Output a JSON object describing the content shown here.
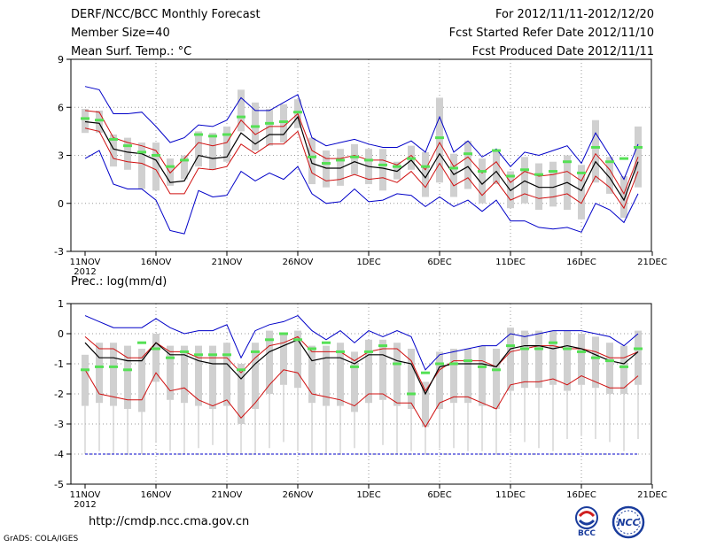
{
  "header": {
    "title": "DERF/NCC/BCC Monthly Forecast",
    "member_size": "Member Size=40",
    "variable": "Mean Surf. Temp.: °C",
    "period": "For 2012/11/11-2012/12/20",
    "started": "Fcst Started Refer Date 2012/11/10",
    "produced": "Fcst Produced Date 2012/11/11"
  },
  "footer": {
    "url": "http://cmdp.ncc.cma.gov.cn",
    "credit": "GrADS: COLA/IGES",
    "logo_bcc": "BCC",
    "logo_ncc": "NCC"
  },
  "colors": {
    "ensemble_mean": "#000000",
    "spread": "#d01010",
    "envelope": "#0000c8",
    "climatology": "#55e055",
    "members_box": "#d0d0d0",
    "members_whisker": "#c0c0c0"
  },
  "chart_data": [
    {
      "type": "line",
      "title": "Mean Surf. Temp.: °C",
      "ylim": [
        -3,
        9
      ],
      "yticks": [
        -3,
        0,
        3,
        6,
        9
      ],
      "x_tick_labels": [
        "11NOV",
        "16NOV",
        "21NOV",
        "26NOV",
        "1DEC",
        "6DEC",
        "11DEC",
        "16DEC",
        "21DEC"
      ],
      "x_tick_sublabel": "2012",
      "days": 40,
      "series": [
        {
          "name": "max",
          "values": [
            7.3,
            7.1,
            5.6,
            5.6,
            5.7,
            4.8,
            3.8,
            4.1,
            4.9,
            4.8,
            5.2,
            6.6,
            5.8,
            5.8,
            6.3,
            6.8,
            4.1,
            3.6,
            3.8,
            4.0,
            3.7,
            3.5,
            3.5,
            3.9,
            3.2,
            5.4,
            3.2,
            3.9,
            2.9,
            3.4,
            2.3,
            3.2,
            3.0,
            3.3,
            3.6,
            2.5,
            4.4,
            3.0,
            1.5,
            3.7
          ]
        },
        {
          "name": "upper",
          "values": [
            5.8,
            5.7,
            4.1,
            3.8,
            3.6,
            3.3,
            1.9,
            2.8,
            3.8,
            3.6,
            3.8,
            5.2,
            4.3,
            4.8,
            4.8,
            5.6,
            3.3,
            2.8,
            2.8,
            3.0,
            2.7,
            2.7,
            2.4,
            3.0,
            2.1,
            3.8,
            2.3,
            2.9,
            1.9,
            2.6,
            1.3,
            2.0,
            1.7,
            1.8,
            2.0,
            1.4,
            3.1,
            2.1,
            0.6,
            2.9
          ]
        },
        {
          "name": "mean",
          "values": [
            5.1,
            5.0,
            3.4,
            3.2,
            3.1,
            2.7,
            1.3,
            1.4,
            3.0,
            2.8,
            2.9,
            4.4,
            3.7,
            4.3,
            4.3,
            5.4,
            2.5,
            2.2,
            2.2,
            2.6,
            2.3,
            2.2,
            2.0,
            2.7,
            1.6,
            3.1,
            1.8,
            2.3,
            1.2,
            2.0,
            0.8,
            1.4,
            1.0,
            1.0,
            1.3,
            0.8,
            2.6,
            1.6,
            0.2,
            2.6
          ]
        },
        {
          "name": "lower",
          "values": [
            4.7,
            4.5,
            2.8,
            2.6,
            2.5,
            2.1,
            0.6,
            0.6,
            2.2,
            2.1,
            2.3,
            3.7,
            3.1,
            3.7,
            3.7,
            4.5,
            1.9,
            1.4,
            1.5,
            1.8,
            1.5,
            1.6,
            1.3,
            2.0,
            1.0,
            2.5,
            1.1,
            1.6,
            0.5,
            1.4,
            0.2,
            0.6,
            0.3,
            0.4,
            0.6,
            0.0,
            1.7,
            1.0,
            -0.3,
            2.0
          ]
        },
        {
          "name": "min",
          "values": [
            2.8,
            3.3,
            1.2,
            0.9,
            0.9,
            0.2,
            -1.7,
            -1.9,
            0.8,
            0.4,
            0.5,
            2.0,
            1.4,
            1.9,
            1.5,
            2.3,
            0.6,
            0.0,
            0.1,
            0.9,
            0.1,
            0.2,
            0.6,
            0.5,
            -0.2,
            0.4,
            -0.2,
            0.2,
            -0.5,
            0.2,
            -1.1,
            -1.1,
            -1.5,
            -1.6,
            -1.5,
            -1.8,
            0.0,
            -0.4,
            -1.2,
            0.6
          ]
        },
        {
          "name": "climatology",
          "values": [
            5.3,
            5.2,
            4.0,
            3.6,
            3.2,
            3.0,
            2.3,
            2.7,
            4.3,
            4.2,
            4.3,
            5.4,
            4.8,
            5.0,
            5.1,
            5.7,
            2.9,
            2.5,
            2.7,
            2.9,
            2.7,
            2.4,
            2.3,
            2.8,
            2.3,
            4.1,
            2.2,
            3.1,
            2.0,
            3.3,
            1.7,
            2.1,
            1.8,
            2.0,
            2.6,
            1.9,
            3.5,
            2.6,
            2.8,
            3.5
          ]
        }
      ],
      "member_box_low": [
        4.4,
        4.4,
        2.3,
        2.1,
        0.9,
        0.8,
        1.1,
        1.5,
        2.3,
        2.1,
        2.6,
        4.5,
        3.3,
        3.6,
        3.8,
        4.7,
        1.2,
        1.0,
        1.1,
        1.8,
        1.2,
        0.8,
        1.5,
        2.1,
        0.4,
        1.3,
        0.4,
        0.9,
        0.0,
        1.2,
        -0.3,
        0.0,
        -0.4,
        -0.2,
        -0.4,
        -1.0,
        1.3,
        0.6,
        -0.9,
        1.0
      ],
      "member_box_high": [
        5.9,
        5.8,
        4.3,
        4.1,
        3.8,
        3.8,
        2.8,
        3.0,
        4.5,
        4.4,
        4.8,
        7.1,
        6.3,
        5.9,
        6.2,
        6.5,
        4.1,
        3.3,
        3.4,
        3.7,
        3.4,
        3.4,
        2.6,
        3.6,
        3.2,
        6.6,
        3.1,
        3.9,
        2.8,
        3.3,
        2.0,
        2.9,
        2.5,
        2.6,
        3.0,
        2.4,
        5.2,
        2.9,
        1.7,
        4.8
      ]
    },
    {
      "type": "line",
      "title": "Prec.: log(mm/d)",
      "ylim": [
        -5,
        1
      ],
      "yticks": [
        -5,
        -4,
        -3,
        -2,
        -1,
        0,
        1
      ],
      "x_tick_labels": [
        "11NOV",
        "16NOV",
        "21NOV",
        "26NOV",
        "1DEC",
        "6DEC",
        "11DEC",
        "16DEC",
        "21DEC"
      ],
      "x_tick_sublabel": "2012",
      "days": 40,
      "floor_value": -4,
      "series": [
        {
          "name": "max",
          "values": [
            0.6,
            0.4,
            0.2,
            0.2,
            0.2,
            0.5,
            0.2,
            0.0,
            0.1,
            0.1,
            0.3,
            -0.8,
            0.1,
            0.3,
            0.4,
            0.6,
            0.1,
            -0.2,
            0.1,
            -0.3,
            0.1,
            -0.1,
            0.1,
            -0.1,
            -1.2,
            -0.7,
            -0.6,
            -0.5,
            -0.4,
            -0.4,
            0.0,
            -0.1,
            0.0,
            0.1,
            0.1,
            0.1,
            0.0,
            -0.1,
            -0.4,
            0.0
          ]
        },
        {
          "name": "upper",
          "values": [
            -0.1,
            -0.5,
            -0.5,
            -0.8,
            -0.8,
            -0.3,
            -0.6,
            -0.6,
            -0.8,
            -0.8,
            -0.8,
            -1.3,
            -0.8,
            -0.4,
            -0.3,
            -0.1,
            -0.6,
            -0.6,
            -0.6,
            -0.9,
            -0.6,
            -0.5,
            -0.5,
            -0.9,
            -1.9,
            -1.2,
            -0.9,
            -0.9,
            -0.9,
            -1.1,
            -0.6,
            -0.5,
            -0.4,
            -0.4,
            -0.5,
            -0.5,
            -0.6,
            -0.8,
            -0.8,
            -0.6
          ]
        },
        {
          "name": "mean",
          "values": [
            -0.3,
            -0.8,
            -0.8,
            -0.9,
            -0.9,
            -0.3,
            -0.7,
            -0.7,
            -0.9,
            -1.0,
            -1.0,
            -1.5,
            -1.0,
            -0.6,
            -0.4,
            -0.2,
            -0.9,
            -0.8,
            -0.8,
            -1.0,
            -0.7,
            -0.7,
            -0.9,
            -1.0,
            -2.0,
            -1.1,
            -1.0,
            -1.0,
            -1.0,
            -1.1,
            -0.5,
            -0.4,
            -0.4,
            -0.5,
            -0.4,
            -0.5,
            -0.7,
            -0.9,
            -1.0,
            -0.6
          ]
        },
        {
          "name": "lower",
          "values": [
            -1.2,
            -2.0,
            -2.1,
            -2.2,
            -2.2,
            -1.3,
            -1.9,
            -1.8,
            -2.2,
            -2.4,
            -2.2,
            -2.8,
            -2.3,
            -1.7,
            -1.2,
            -1.3,
            -2.0,
            -2.1,
            -2.2,
            -2.4,
            -2.0,
            -2.0,
            -2.3,
            -2.3,
            -3.1,
            -2.3,
            -2.1,
            -2.1,
            -2.3,
            -2.5,
            -1.7,
            -1.6,
            -1.6,
            -1.5,
            -1.7,
            -1.4,
            -1.6,
            -1.8,
            -1.8,
            -1.4
          ]
        },
        {
          "name": "climatology",
          "values": [
            -1.2,
            -1.1,
            -1.1,
            -1.2,
            -0.3,
            -0.5,
            -0.8,
            -0.6,
            -0.7,
            -0.7,
            -0.7,
            -1.2,
            -0.6,
            -0.2,
            0.0,
            -0.2,
            -0.5,
            -0.3,
            -0.6,
            -1.1,
            -0.6,
            -0.4,
            -1.0,
            -2.0,
            -1.3,
            -1.0,
            -1.0,
            -0.9,
            -1.1,
            -1.2,
            -0.4,
            -0.5,
            -0.5,
            -0.3,
            -0.5,
            -0.6,
            -0.8,
            -0.9,
            -1.1,
            -0.5
          ]
        }
      ],
      "member_box_low": [
        -2.4,
        -2.3,
        -2.4,
        -2.5,
        -2.6,
        -1.6,
        -2.2,
        -2.3,
        -2.4,
        -2.5,
        -2.4,
        -3.0,
        -2.5,
        -2.0,
        -1.7,
        -1.8,
        -2.3,
        -2.4,
        -2.4,
        -2.6,
        -2.3,
        -2.2,
        -2.4,
        -2.5,
        -3.1,
        -2.5,
        -2.3,
        -2.3,
        -2.4,
        -2.5,
        -1.9,
        -1.8,
        -1.8,
        -1.7,
        -1.9,
        -1.7,
        -1.8,
        -2.0,
        -2.0,
        -1.7
      ],
      "member_box_high": [
        -0.7,
        -0.3,
        -0.3,
        -0.4,
        -0.5,
        0.0,
        -0.4,
        -0.4,
        -0.4,
        -0.4,
        -0.3,
        -1.0,
        -0.3,
        0.1,
        0.0,
        0.1,
        -0.4,
        -0.4,
        -0.3,
        -0.6,
        -0.2,
        -0.2,
        -0.3,
        -0.5,
        -1.6,
        -0.6,
        -0.5,
        -0.5,
        -0.4,
        -0.5,
        0.2,
        0.1,
        0.1,
        0.1,
        0.1,
        0.0,
        -0.1,
        -0.3,
        -0.4,
        0.1
      ],
      "member_whisker_low": [
        -4.0,
        -3.9,
        -4.0,
        -4.0,
        -4.0,
        -3.6,
        -3.9,
        -4.0,
        -3.8,
        -3.7,
        -4.0,
        -4.0,
        -4.0,
        -3.8,
        -3.6,
        -3.9,
        -4.0,
        -4.0,
        -4.0,
        -3.8,
        -4.0,
        -3.7,
        -4.0,
        -3.9,
        -4.0,
        -3.8,
        -3.8,
        -3.9,
        -3.9,
        -4.0,
        -3.3,
        -3.6,
        -3.8,
        -3.9,
        -3.5,
        -3.4,
        -3.5,
        -3.6,
        -3.9,
        -3.5
      ]
    }
  ]
}
